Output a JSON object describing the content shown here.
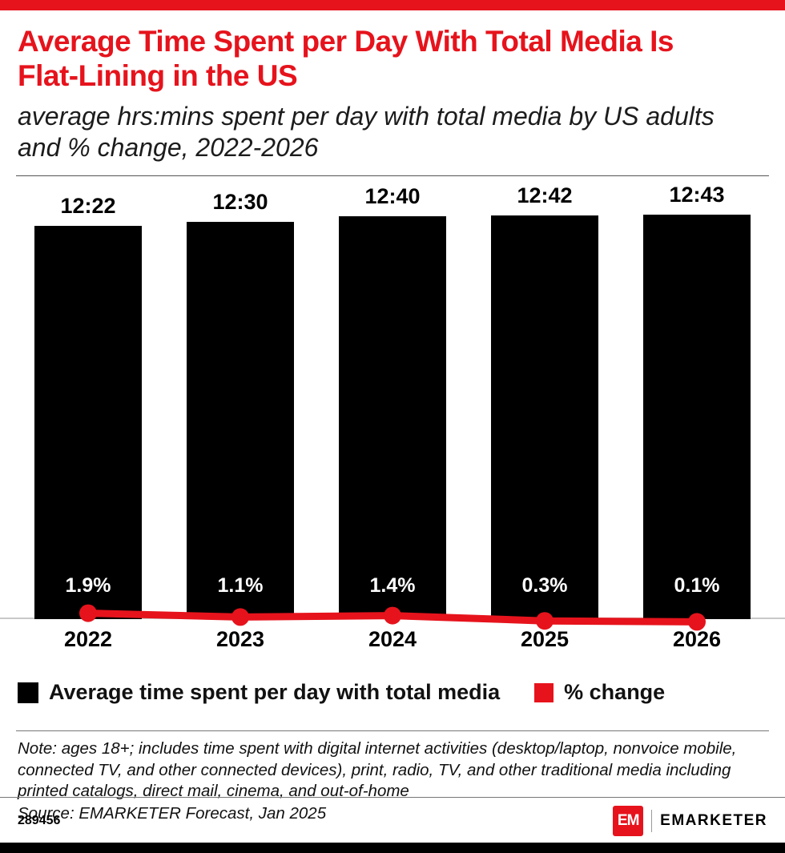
{
  "colors": {
    "red": "#e6131c",
    "black": "#000000",
    "baseline_gray": "#c8c8c8"
  },
  "header": {
    "title": "Average Time Spent per Day With Total Media Is Flat-Lining in the US",
    "subtitle": "average hrs:mins spent per day with total media by US adults and % change, 2022-2026"
  },
  "chart_data": {
    "type": "bar",
    "categories": [
      "2022",
      "2023",
      "2024",
      "2025",
      "2026"
    ],
    "series": [
      {
        "name": "Average time spent per day with total media",
        "type": "bar",
        "values_hhmm": [
          "12:22",
          "12:30",
          "12:40",
          "12:42",
          "12:43"
        ],
        "values_minutes": [
          742,
          750,
          760,
          762,
          763
        ],
        "color": "#000000"
      },
      {
        "name": "% change",
        "type": "line",
        "values_pct": [
          1.9,
          1.1,
          1.4,
          0.3,
          0.1
        ],
        "labels": [
          "1.9%",
          "1.1%",
          "1.4%",
          "0.3%",
          "0.1%"
        ],
        "color": "#e6131c"
      }
    ],
    "title": "Average Time Spent per Day With Total Media Is Flat-Lining in the US",
    "xlabel": "",
    "ylabel": "",
    "axes_hidden": true,
    "grid": false,
    "legend_position": "bottom",
    "value_labels_position": "above bars (hh:mm) and inside bars (% change, white)"
  },
  "legend": [
    {
      "label": "Average time spent per day with total media",
      "color": "#000000"
    },
    {
      "label": "% change",
      "color": "#e6131c"
    }
  ],
  "note": {
    "text": "Note: ages 18+; includes time spent with digital internet activities (desktop/laptop, nonvoice mobile, connected TV, and other connected devices), print, radio, TV, and other traditional media including printed catalogs, direct mail, cinema, and out-of-home",
    "source": "Source: EMARKETER Forecast, Jan 2025"
  },
  "footer": {
    "chart_id": "289456",
    "logo_text": "EM",
    "brand": "EMARKETER"
  }
}
